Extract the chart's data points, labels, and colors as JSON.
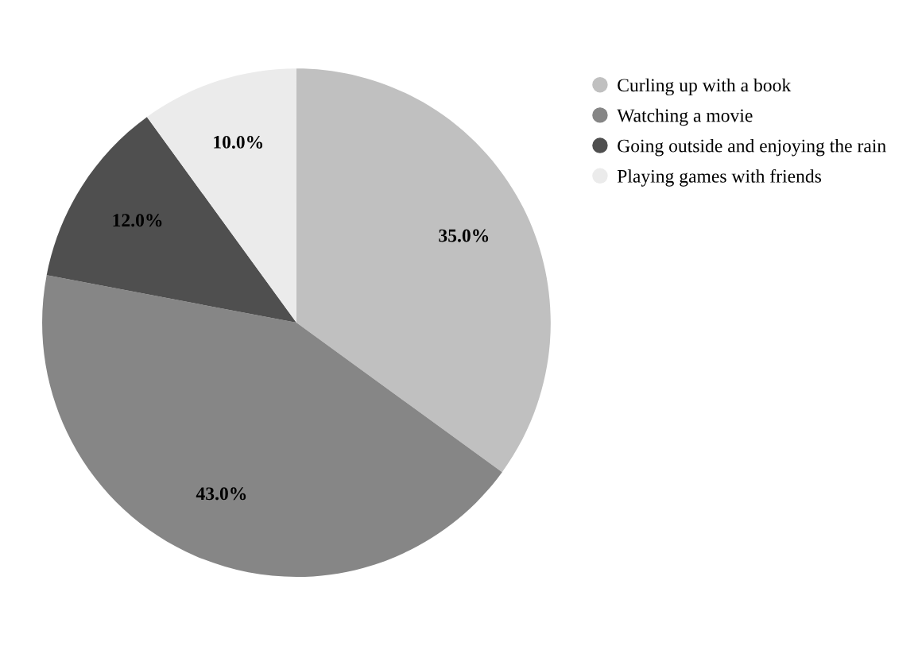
{
  "chart_data": {
    "type": "pie",
    "categories": [
      "Curling up with a book",
      "Watching a movie",
      "Going outside and enjoying the rain",
      "Playing games with friends"
    ],
    "values": [
      35,
      43,
      12,
      10
    ],
    "colors": [
      "#c0c0c0",
      "#868686",
      "#4f4f4f",
      "#ebebeb"
    ],
    "value_labels": [
      "35.0%",
      "43.0%",
      "12.0%",
      "10.0%"
    ],
    "legend": "right"
  }
}
